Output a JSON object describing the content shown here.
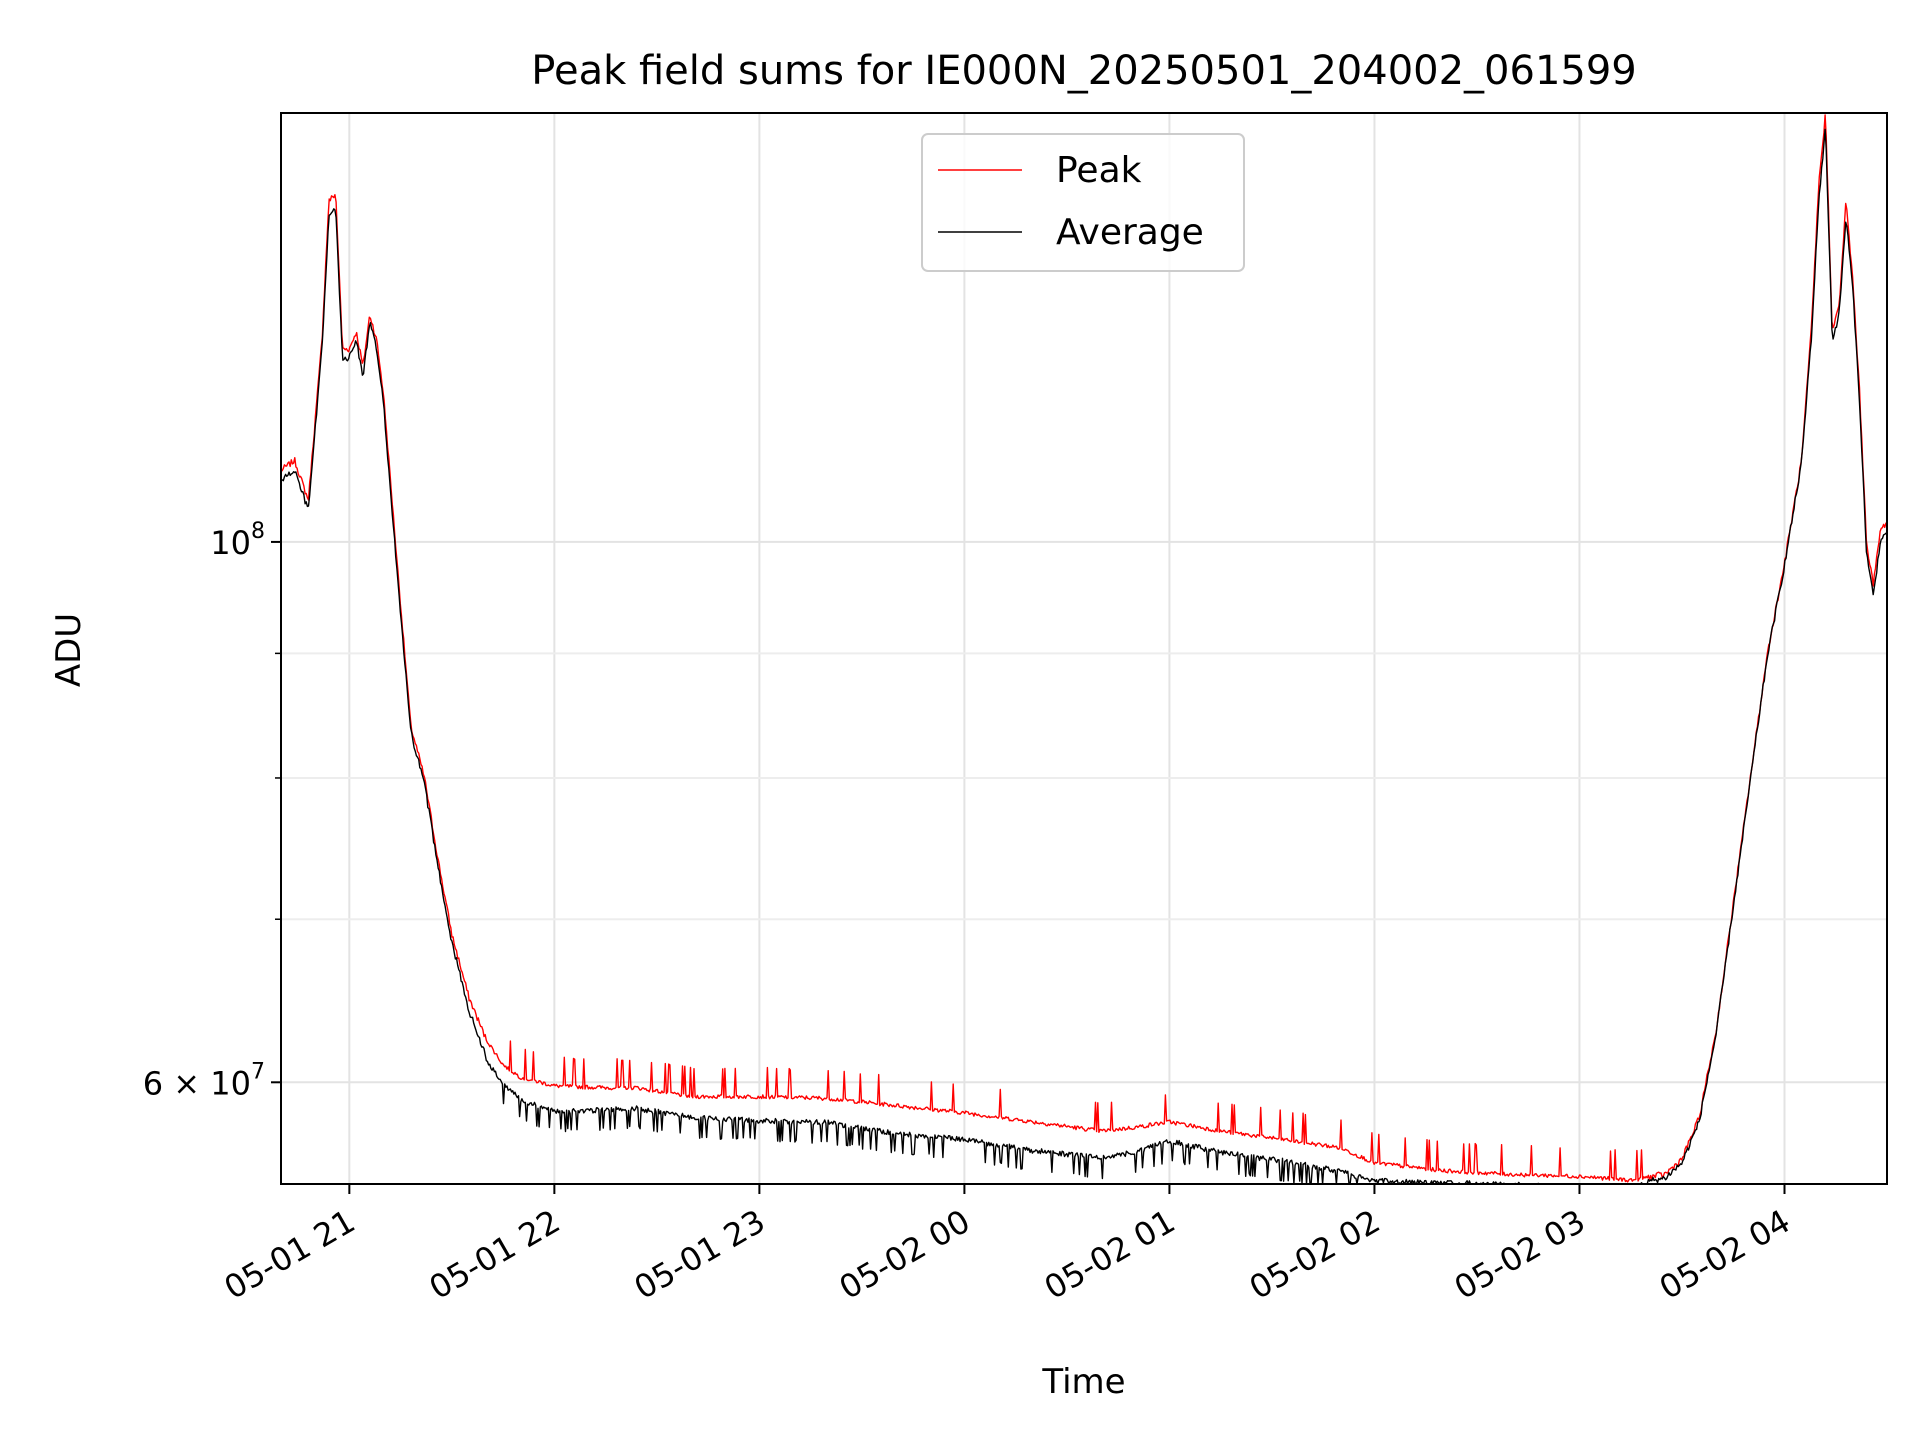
{
  "chart_data": {
    "type": "line",
    "title": "Peak field sums for IE000N_20250501_204002_061599",
    "xlabel": "Time",
    "ylabel": "ADU",
    "x_scale": "time",
    "y_scale": "log",
    "xlim": [
      "2025-05-01 20:40",
      "2025-05-02 04:30"
    ],
    "ylim": [
      54500000,
      150000000
    ],
    "grid": true,
    "legend_position": "top-center",
    "x_ticks": [
      {
        "t": "2025-05-01 21:00",
        "label": "05-01 21"
      },
      {
        "t": "2025-05-01 22:00",
        "label": "05-01 22"
      },
      {
        "t": "2025-05-01 23:00",
        "label": "05-01 23"
      },
      {
        "t": "2025-05-02 00:00",
        "label": "05-02 00"
      },
      {
        "t": "2025-05-02 01:00",
        "label": "05-02 01"
      },
      {
        "t": "2025-05-02 02:00",
        "label": "05-02 02"
      },
      {
        "t": "2025-05-02 03:00",
        "label": "05-02 03"
      },
      {
        "t": "2025-05-02 04:00",
        "label": "05-02 04"
      }
    ],
    "y_ticks_major": [
      {
        "v": 60000000,
        "base": "6 × 10",
        "exp": "7"
      },
      {
        "v": 100000000,
        "base": "10",
        "exp": "8"
      }
    ],
    "y_ticks_minor": [
      70000000,
      80000000,
      90000000
    ],
    "series": [
      {
        "name": "Peak",
        "color": "#ff0000",
        "x": [
          "2025-05-01 20:40",
          "2025-05-01 20:44",
          "2025-05-01 20:48",
          "2025-05-01 20:52",
          "2025-05-01 20:54",
          "2025-05-01 20:56",
          "2025-05-01 20:58",
          "2025-05-01 21:00",
          "2025-05-01 21:02",
          "2025-05-01 21:04",
          "2025-05-01 21:06",
          "2025-05-01 21:08",
          "2025-05-01 21:10",
          "2025-05-01 21:14",
          "2025-05-01 21:18",
          "2025-05-01 21:22",
          "2025-05-01 21:26",
          "2025-05-01 21:30",
          "2025-05-01 21:35",
          "2025-05-01 21:40",
          "2025-05-01 21:45",
          "2025-05-01 21:50",
          "2025-05-01 22:00",
          "2025-05-01 22:15",
          "2025-05-01 22:24",
          "2025-05-01 22:40",
          "2025-05-01 23:00",
          "2025-05-01 23:20",
          "2025-05-01 23:40",
          "2025-05-02 00:00",
          "2025-05-02 00:20",
          "2025-05-02 00:40",
          "2025-05-02 00:50",
          "2025-05-02 01:00",
          "2025-05-02 01:15",
          "2025-05-02 01:35",
          "2025-05-02 01:50",
          "2025-05-02 02:00",
          "2025-05-02 02:20",
          "2025-05-02 02:40",
          "2025-05-02 03:00",
          "2025-05-02 03:15",
          "2025-05-02 03:25",
          "2025-05-02 03:30",
          "2025-05-02 03:35",
          "2025-05-02 03:40",
          "2025-05-02 03:45",
          "2025-05-02 03:50",
          "2025-05-02 03:55",
          "2025-05-02 04:00",
          "2025-05-02 04:05",
          "2025-05-02 04:08",
          "2025-05-02 04:10",
          "2025-05-02 04:12",
          "2025-05-02 04:14",
          "2025-05-02 04:16",
          "2025-05-02 04:18",
          "2025-05-02 04:20",
          "2025-05-02 04:22",
          "2025-05-02 04:24",
          "2025-05-02 04:26",
          "2025-05-02 04:28",
          "2025-05-02 04:30"
        ],
        "y": [
          107000000,
          108000000,
          104000000,
          121000000,
          138000000,
          139000000,
          120000000,
          120000000,
          122000000,
          118000000,
          124000000,
          121000000,
          115000000,
          98000000,
          84000000,
          80000000,
          74000000,
          69000000,
          65000000,
          62500000,
          61000000,
          60300000,
          59800000,
          59700000,
          59700000,
          59200000,
          59200000,
          59100000,
          58700000,
          58300000,
          57800000,
          57300000,
          57500000,
          57800000,
          57300000,
          56800000,
          56400000,
          55600000,
          55200000,
          55000000,
          54900000,
          54700000,
          55000000,
          55800000,
          58000000,
          63000000,
          71000000,
          80000000,
          90000000,
          98000000,
          108000000,
          123000000,
          140000000,
          150000000,
          122000000,
          125000000,
          138000000,
          128000000,
          115000000,
          100000000,
          96000000,
          101000000,
          102000000
        ]
      },
      {
        "name": "Average",
        "color": "#000000",
        "x": [
          "2025-05-01 20:40",
          "2025-05-01 20:44",
          "2025-05-01 20:48",
          "2025-05-01 20:52",
          "2025-05-01 20:54",
          "2025-05-01 20:56",
          "2025-05-01 20:58",
          "2025-05-01 21:00",
          "2025-05-01 21:02",
          "2025-05-01 21:04",
          "2025-05-01 21:06",
          "2025-05-01 21:08",
          "2025-05-01 21:10",
          "2025-05-01 21:14",
          "2025-05-01 21:18",
          "2025-05-01 21:22",
          "2025-05-01 21:26",
          "2025-05-01 21:30",
          "2025-05-01 21:35",
          "2025-05-01 21:40",
          "2025-05-01 21:45",
          "2025-05-01 21:50",
          "2025-05-01 22:00",
          "2025-05-01 22:15",
          "2025-05-01 22:24",
          "2025-05-01 22:40",
          "2025-05-01 23:00",
          "2025-05-01 23:20",
          "2025-05-01 23:40",
          "2025-05-02 00:00",
          "2025-05-02 00:20",
          "2025-05-02 00:40",
          "2025-05-02 00:50",
          "2025-05-02 01:00",
          "2025-05-02 01:15",
          "2025-05-02 01:35",
          "2025-05-02 01:50",
          "2025-05-02 02:00",
          "2025-05-02 02:20",
          "2025-05-02 02:40",
          "2025-05-02 03:00",
          "2025-05-02 03:15",
          "2025-05-02 03:25",
          "2025-05-02 03:30",
          "2025-05-02 03:35",
          "2025-05-02 03:40",
          "2025-05-02 03:45",
          "2025-05-02 03:50",
          "2025-05-02 03:55",
          "2025-05-02 04:00",
          "2025-05-02 04:05",
          "2025-05-02 04:08",
          "2025-05-02 04:10",
          "2025-05-02 04:12",
          "2025-05-02 04:14",
          "2025-05-02 04:16",
          "2025-05-02 04:18",
          "2025-05-02 04:20",
          "2025-05-02 04:22",
          "2025-05-02 04:24",
          "2025-05-02 04:26",
          "2025-05-02 04:28",
          "2025-05-02 04:30"
        ],
        "y": [
          106000000,
          107000000,
          103000000,
          120000000,
          136000000,
          137000000,
          119000000,
          119000000,
          121000000,
          117000000,
          123000000,
          120000000,
          114000000,
          97000000,
          83500000,
          79500000,
          73500000,
          68500000,
          64200000,
          61500000,
          60000000,
          59200000,
          58500000,
          58600000,
          58700000,
          58200000,
          58000000,
          57900000,
          57300000,
          57000000,
          56400000,
          56000000,
          56300000,
          56900000,
          56300000,
          55800000,
          55300000,
          54800000,
          54700000,
          54600000,
          54500000,
          54500000,
          54800000,
          55600000,
          57800000,
          62800000,
          70800000,
          79800000,
          89800000,
          97800000,
          107800000,
          122000000,
          138000000,
          148000000,
          121000000,
          124000000,
          136000000,
          127000000,
          114000000,
          99000000,
          95000000,
          100000000,
          101000000
        ]
      }
    ]
  }
}
